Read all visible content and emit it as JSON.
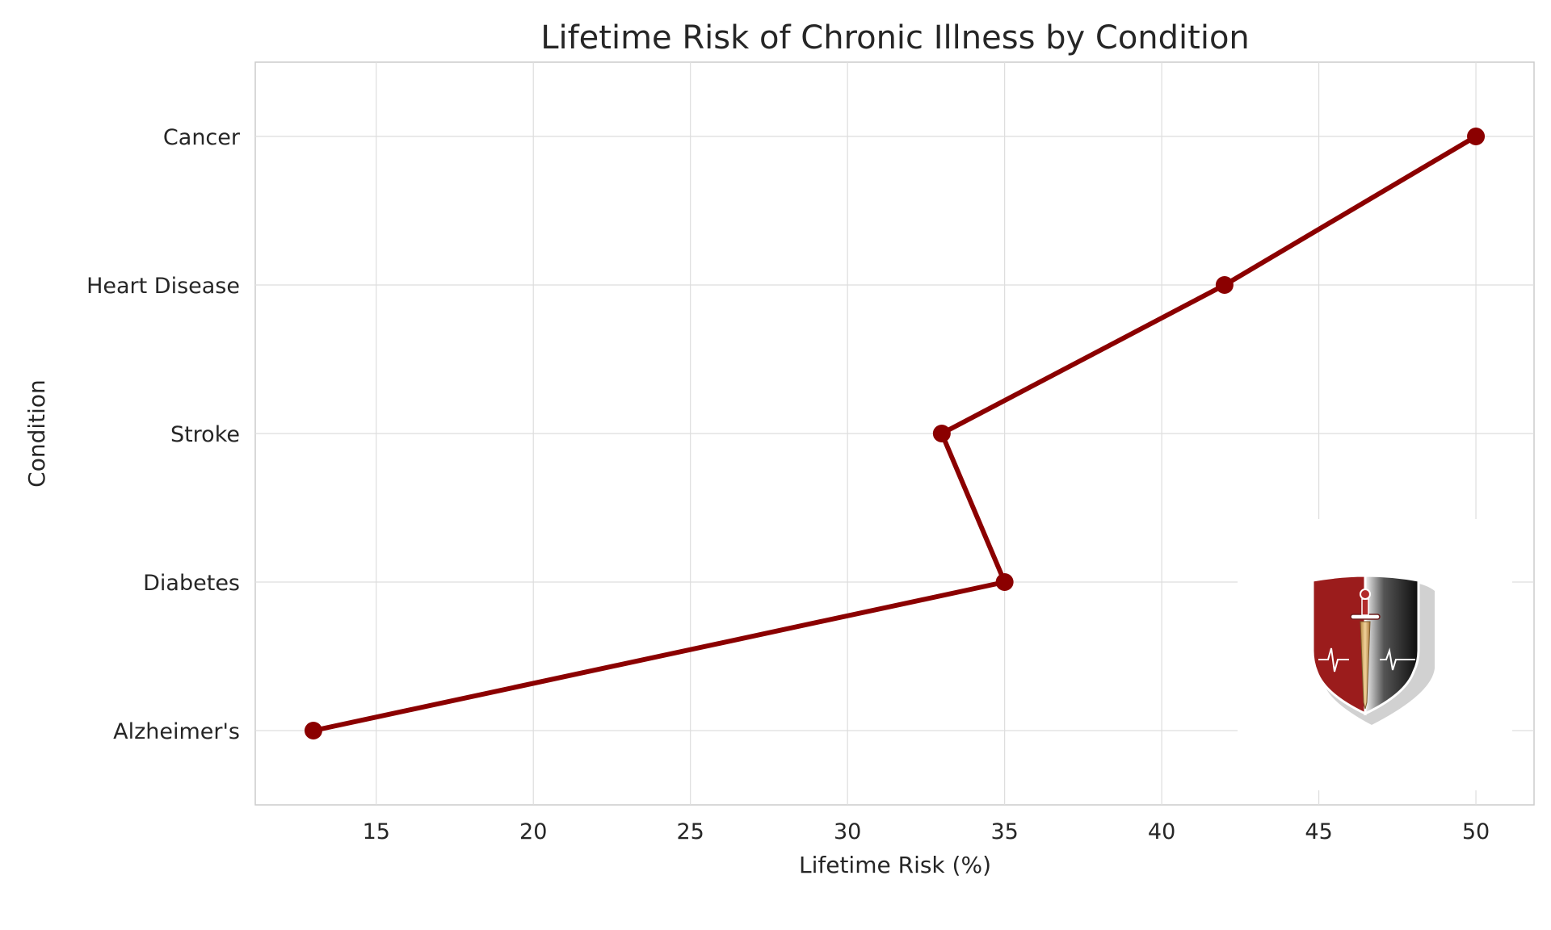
{
  "chart_data": {
    "type": "line",
    "title": "Lifetime Risk of Chronic Illness by Condition",
    "xlabel": "Lifetime Risk (%)",
    "ylabel": "Condition",
    "categories": [
      "Alzheimer's",
      "Diabetes",
      "Stroke",
      "Heart Disease",
      "Cancer"
    ],
    "values": [
      13,
      35,
      33,
      42,
      50
    ],
    "xlim": [
      11.15,
      51.85
    ],
    "xticks": [
      15,
      20,
      25,
      30,
      35,
      40,
      45,
      50
    ],
    "grid": true,
    "line_color": "#8b0000",
    "logo": {
      "icon": "shield-dagger-heartbeat-logo",
      "colors": [
        "#9b1c1c",
        "#111111",
        "#d9b36a"
      ]
    }
  }
}
